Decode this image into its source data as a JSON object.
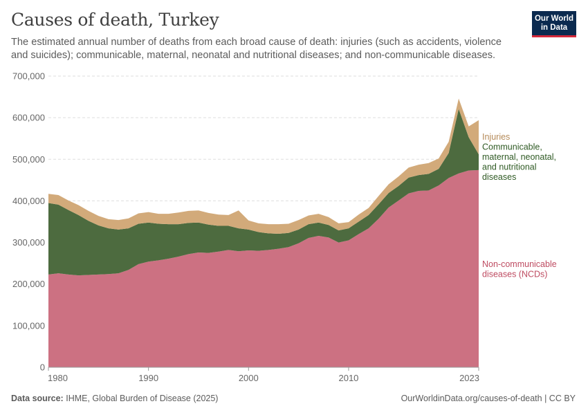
{
  "header": {
    "title": "Causes of death, Turkey",
    "subtitle": "The estimated annual number of deaths from each broad cause of death: injuries (such as accidents, violence and suicides); communicable, maternal, neonatal and nutritional diseases; and non-communicable diseases."
  },
  "logo": {
    "line1": "Our World",
    "line2": "in Data"
  },
  "footer": {
    "source_label": "Data source:",
    "source_text": "IHME, Global Burden of Disease (2025)",
    "url": "OurWorldinData.org/causes-of-death | CC BY"
  },
  "colors": {
    "ncd": "#cc7182",
    "communicable": "#4d6b3f",
    "injuries": "#d2aa7a",
    "ncd_label": "#be4b61",
    "communicable_label": "#2f5a24",
    "injuries_label": "#b58a58",
    "grid": "#dddddd"
  },
  "chart_data": {
    "type": "area",
    "stacked": true,
    "title": "Causes of death, Turkey",
    "xlabel": "",
    "ylabel": "",
    "xlim": [
      1980,
      2023
    ],
    "ylim": [
      0,
      700000
    ],
    "x_ticks": [
      1980,
      1990,
      2000,
      2010,
      2023
    ],
    "x_tick_labels": [
      "1980",
      "1990",
      "2000",
      "2010",
      "2023"
    ],
    "y_ticks": [
      0,
      100000,
      200000,
      300000,
      400000,
      500000,
      600000,
      700000
    ],
    "y_tick_labels": [
      "0",
      "100,000",
      "200,000",
      "300,000",
      "400,000",
      "500,000",
      "600,000",
      "700,000"
    ],
    "grid": true,
    "x": [
      1980,
      1981,
      1982,
      1983,
      1984,
      1985,
      1986,
      1987,
      1988,
      1989,
      1990,
      1991,
      1992,
      1993,
      1994,
      1995,
      1996,
      1997,
      1998,
      1999,
      2000,
      2001,
      2002,
      2003,
      2004,
      2005,
      2006,
      2007,
      2008,
      2009,
      2010,
      2011,
      2012,
      2013,
      2014,
      2015,
      2016,
      2017,
      2018,
      2019,
      2020,
      2021,
      2022,
      2023
    ],
    "series": [
      {
        "name": "Non-communicable diseases (NCDs)",
        "legend_lines": [
          "Non-communicable",
          "diseases (NCDs)"
        ],
        "values": [
          223000,
          226000,
          223000,
          221000,
          222000,
          223000,
          224000,
          226000,
          234000,
          248000,
          254000,
          257000,
          261000,
          266000,
          272000,
          276000,
          275000,
          278000,
          282000,
          279000,
          281000,
          280000,
          282000,
          285000,
          289000,
          298000,
          311000,
          316000,
          312000,
          300000,
          305000,
          320000,
          334000,
          357000,
          384000,
          401000,
          418000,
          424000,
          425000,
          437000,
          455000,
          466000,
          473000,
          474000
        ]
      },
      {
        "name": "Communicable, maternal, neonatal, and nutritional diseases",
        "legend_lines": [
          "Communicable,",
          "maternal, neonatal,",
          "and nutritional",
          "diseases"
        ],
        "values": [
          172000,
          165000,
          155000,
          145000,
          130000,
          118000,
          110000,
          105000,
          100000,
          97000,
          94000,
          88000,
          83000,
          78000,
          75000,
          72000,
          68000,
          62000,
          58000,
          55000,
          50000,
          45000,
          40000,
          36000,
          34000,
          33000,
          33000,
          32000,
          30000,
          29000,
          29000,
          30000,
          32000,
          35000,
          35000,
          35000,
          38000,
          38000,
          40000,
          40000,
          60000,
          155000,
          80000,
          38000
        ]
      },
      {
        "name": "Injuries",
        "legend_lines": [
          "Injuries"
        ],
        "values": [
          22000,
          23000,
          23000,
          24000,
          24000,
          23000,
          22000,
          23000,
          24000,
          25000,
          25000,
          24000,
          25000,
          28000,
          29000,
          29000,
          28000,
          27000,
          26000,
          43000,
          22000,
          21000,
          22000,
          23000,
          22000,
          23000,
          21000,
          21000,
          19000,
          17000,
          15000,
          17000,
          17000,
          20000,
          21000,
          23000,
          24000,
          25000,
          26000,
          25000,
          27000,
          25000,
          26000,
          82000
        ]
      }
    ]
  }
}
